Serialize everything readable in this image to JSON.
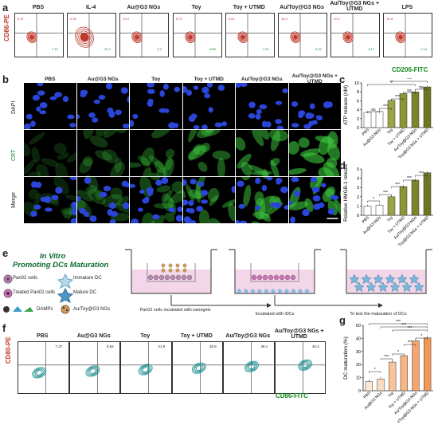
{
  "panel_letters": {
    "a": "a",
    "b": "b",
    "c": "c",
    "d": "d",
    "e": "e",
    "f": "f",
    "g": "g"
  },
  "flow_a": {
    "panels": [
      {
        "title": "PBS",
        "r": "6.37",
        "g": "7.19"
      },
      {
        "title": "IL-4",
        "r": "6.30",
        "g": "32.7"
      },
      {
        "title": "Au@G3 NGs",
        "r": "10.2",
        "g": "3.2"
      },
      {
        "title": "Toy",
        "r": "5.73",
        "g": "8.80"
      },
      {
        "title": "Toy + UTMD",
        "r": "6.61",
        "g": "7.02"
      },
      {
        "title": "Au/Toy@G3 NGs",
        "r": "16.9",
        "g": "3.22"
      },
      {
        "title": "Au/Toy@G3 NGs + UTMD",
        "r": "20.1",
        "g": "3.17"
      },
      {
        "title": "LPS",
        "r": "31.8",
        "g": "2.14"
      }
    ],
    "ylabel": "CD86-PE",
    "xlabel": "CD206-FITC"
  },
  "micro_b": {
    "columns": [
      "PBS",
      "Au@G3 NGs",
      "Toy",
      "Toy + UTMD",
      "Au/Toy@G3 NGs",
      "Au/Toy@G3 NGs + UTMD"
    ],
    "rows": [
      "DAPI",
      "CRT",
      "Merge"
    ]
  },
  "flow_f": {
    "panels": [
      {
        "title": "PBS",
        "val": "7.27"
      },
      {
        "title": "Au@G3 NGs",
        "val": "8.84"
      },
      {
        "title": "Toy",
        "val": "21.9"
      },
      {
        "title": "Toy + UTMD",
        "val": "26.8"
      },
      {
        "title": "Au/Toy@G3 NGs",
        "val": "38.1"
      },
      {
        "title": "Au/Toy@G3 NGs + UTMD",
        "val": "40.4"
      }
    ],
    "ylabel": "CD80-PE",
    "xlabel": "CD86-FITC"
  },
  "scheme_e": {
    "title1": "In Vitro",
    "title2": "Promoting DCs Maturation",
    "legend": [
      "Pan02 cells",
      "Immature DC",
      "Treated Pan02 cells",
      "Mature DC",
      "DAMPs",
      "Au/Toy@G3 NGs"
    ],
    "step1": "Pan02 cells incubated with nanogels",
    "step2": "Incubated with iDCs",
    "step3": "To test the  maturation of DCs"
  },
  "chart_data": [
    {
      "type": "bar",
      "ylabel": "ATP release (nM)",
      "categories": [
        "PBS",
        "Au@G3 NGs",
        "Toy",
        "Toy + UTMD",
        "Au/Toy@G3 NGs",
        "Au/Toy@G3 NGs + UTMD"
      ],
      "values": [
        3.4,
        3.6,
        6.1,
        7.6,
        8.0,
        9.1
      ],
      "ylim": [
        0,
        10
      ],
      "yticks": [
        "0",
        "2",
        "4",
        "6",
        "8",
        "10"
      ],
      "sig": [
        "ns",
        "***",
        "***",
        "ns",
        "ns",
        "**",
        "***"
      ]
    },
    {
      "type": "bar",
      "ylabel": "Relative HMGB-1 release",
      "categories": [
        "PBS",
        "Au@G3 NGs",
        "Toy",
        "Toy + UTMD",
        "Au/Toy@G3 NGs",
        "Au/Toy@G3 NGs + UTMD"
      ],
      "values": [
        1.0,
        1.1,
        2.0,
        3.1,
        3.8,
        4.6
      ],
      "ylim": [
        0,
        5
      ],
      "yticks": [
        "0",
        "1",
        "2",
        "3",
        "4",
        "5"
      ],
      "sig": [
        "*",
        "***",
        "***",
        "***",
        "***"
      ]
    },
    {
      "type": "bar",
      "ylabel": "DC maturation (%)",
      "categories": [
        "PBS",
        "Au@G3 NGs",
        "Toy",
        "Toy + UTMD",
        "Au/Toy@G3 NGs",
        "Au/Toy@G3 NGs + UTMD"
      ],
      "values": [
        7,
        9,
        21.9,
        26.8,
        38.1,
        40.4
      ],
      "ylim": [
        0,
        50
      ],
      "yticks": [
        "0",
        "10",
        "20",
        "30",
        "40",
        "50"
      ],
      "sig": [
        "*",
        "***",
        "*",
        "***",
        "*",
        "***",
        "***",
        "***"
      ]
    }
  ]
}
